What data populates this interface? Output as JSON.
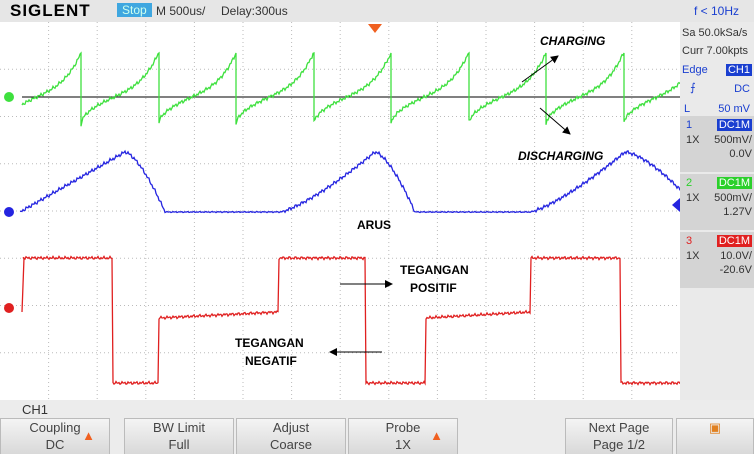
{
  "header": {
    "brand": "SIGLENT",
    "status": "Stop",
    "timebase": "M 500us/",
    "delay": "Delay:300us",
    "frequency": "f < 10Hz"
  },
  "side_panel": {
    "sample_rate": "Sa 50.0kSa/s",
    "memory_depth": "Curr 7.00kpts",
    "trigger": {
      "type": "Edge",
      "source": "CH1",
      "coupling": "DC",
      "level_prefix": "L",
      "level": "50 mV"
    }
  },
  "channels": [
    {
      "number": "1",
      "coupling": "DC1M",
      "probe": "1X",
      "scale": "500mV/",
      "offset": "0.0V"
    },
    {
      "number": "2",
      "coupling": "DC1M",
      "probe": "1X",
      "scale": "500mV/",
      "offset": "1.27V"
    },
    {
      "number": "3",
      "coupling": "DC1M",
      "probe": "1X",
      "scale": "10.0V/",
      "offset": "-20.6V"
    }
  ],
  "annotations": {
    "charging": "CHARGING",
    "discharging": "DISCHARGING",
    "current": "ARUS",
    "positive_voltage": [
      "TEGANGAN",
      "POSITIF"
    ],
    "negative_voltage": [
      "TEGANGAN",
      "NEGATIF"
    ]
  },
  "footer": {
    "channel": "CH1",
    "menu": [
      {
        "label": "Coupling",
        "value": "DC"
      },
      {
        "label": "BW Limit",
        "value": "Full"
      },
      {
        "label": "Adjust",
        "value": "Coarse"
      },
      {
        "label": "Probe",
        "value": "1X"
      },
      {
        "label": "Next Page",
        "value": "Page 1/2"
      }
    ]
  }
}
